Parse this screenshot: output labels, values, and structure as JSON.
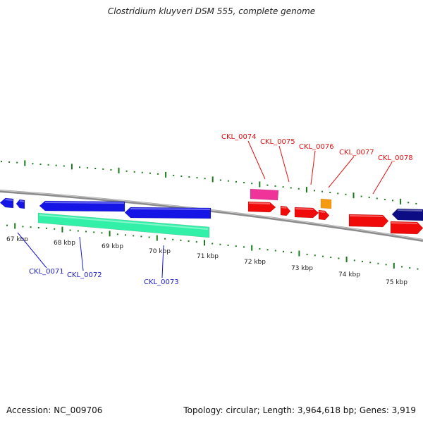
{
  "title": "Clostridium kluyveri DSM 555, complete genome",
  "footer": {
    "accession": "Accession: NC_009706",
    "summary": "Topology: circular; Length: 3,964,618 bp; Genes: 3,919"
  },
  "colors": {
    "blue": "#1515e6",
    "teal": "#33f0a8",
    "red": "#f00a0a",
    "magenta": "#ee3399",
    "orange": "#f59a12",
    "navy": "#0c0c85",
    "tick_green": "#1a7a1a",
    "backbone": "#8c8c8c",
    "label_red": "#e01010",
    "label_blue": "#1a1acc"
  },
  "kbp_labels": [
    "67 kbp",
    "68 kbp",
    "69 kbp",
    "70 kbp",
    "71 kbp",
    "72 kbp",
    "73 kbp",
    "74 kbp",
    "75 kbp"
  ],
  "top_genes": [
    "CKL_0074",
    "CKL_0075",
    "CKL_0076",
    "CKL_0077",
    "CKL_0078"
  ],
  "bottom_genes": [
    "CKL_0071",
    "CKL_0072",
    "CKL_0073"
  ]
}
